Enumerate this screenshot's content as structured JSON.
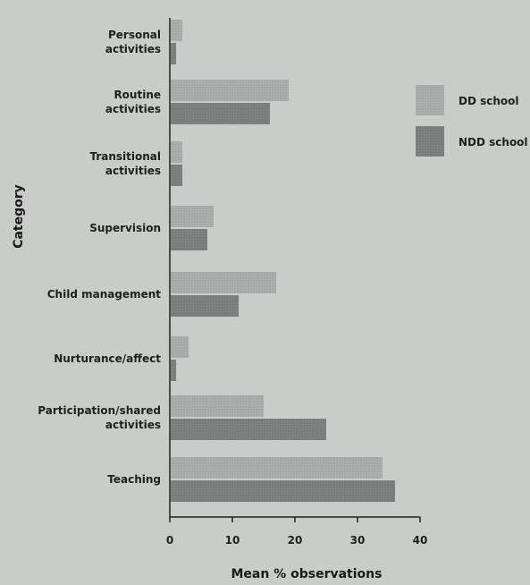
{
  "chart_data": {
    "type": "bar",
    "orientation": "horizontal",
    "categories": [
      [
        "Personal",
        "activities"
      ],
      [
        "Routine",
        "activities"
      ],
      [
        "Transitional",
        "activities"
      ],
      [
        "Supervision"
      ],
      [
        "Child management"
      ],
      [
        "Nurturance/affect"
      ],
      [
        "Participation/shared",
        "activities"
      ],
      [
        "Teaching"
      ]
    ],
    "series": [
      {
        "name": "DD school",
        "color": "#a7aaa9",
        "values": [
          2,
          19,
          2,
          7,
          17,
          3,
          15,
          34
        ]
      },
      {
        "name": "NDD school",
        "color": "#7a7d7c",
        "values": [
          1,
          16,
          2,
          6,
          11,
          1,
          25,
          36
        ]
      }
    ],
    "xlabel": "Mean % observations",
    "ylabel": "Category",
    "xlim": [
      0,
      40
    ],
    "xticks": [
      0,
      10,
      20,
      30,
      40
    ],
    "grid": false,
    "legend": "right"
  }
}
